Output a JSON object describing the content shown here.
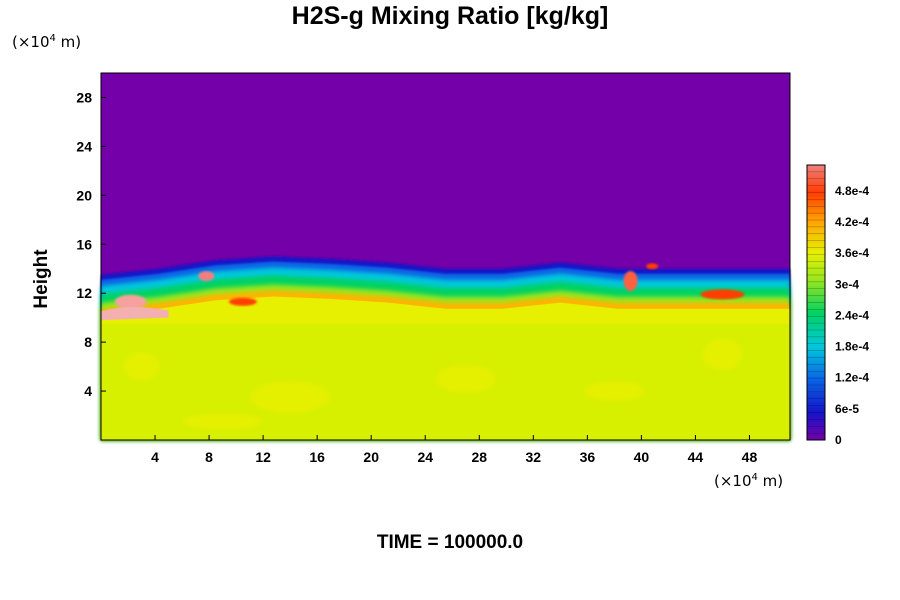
{
  "header": {
    "title": "H2S-g Mixing Ratio [kg/kg]",
    "y_units": "(×10",
    "y_units_exp": "4",
    "y_units_tail": " m)",
    "x_units": "(×10",
    "x_units_exp": "4",
    "x_units_tail": " m)",
    "ylabel": "Height"
  },
  "footer": {
    "time_label": "TIME = 100000.0"
  },
  "chart_data": {
    "type": "heatmap",
    "title": "H2S-g Mixing Ratio [kg/kg]",
    "ylabel": "Height",
    "xlabel": "",
    "xlim": [
      0,
      51
    ],
    "ylim": [
      0,
      30
    ],
    "x_ticks": [
      "4",
      "8",
      "12",
      "16",
      "20",
      "24",
      "28",
      "32",
      "36",
      "40",
      "44",
      "48"
    ],
    "y_ticks": [
      "4",
      "8",
      "12",
      "16",
      "20",
      "24",
      "28"
    ],
    "x_tick_values": [
      4,
      8,
      12,
      16,
      20,
      24,
      28,
      32,
      36,
      40,
      44,
      48
    ],
    "y_tick_values": [
      4,
      8,
      12,
      16,
      20,
      24,
      28
    ],
    "colorbar": {
      "labels": [
        "0",
        "6e-5",
        "1.2e-4",
        "1.8e-4",
        "2.4e-4",
        "3e-4",
        "3.6e-4",
        "4.2e-4",
        "4.8e-4"
      ],
      "values": [
        0,
        6e-05,
        0.00012,
        0.00018,
        0.00024,
        0.0003,
        0.00036,
        0.00042,
        0.00048
      ],
      "max": 0.00053,
      "colors": [
        "#7300a8",
        "#1414c8",
        "#0a64e6",
        "#00c8dc",
        "#00d264",
        "#96e61e",
        "#e6f000",
        "#ffa000",
        "#ff3c00",
        "#f08080"
      ]
    },
    "field_description_values": {
      "upper_region_value": 0,
      "lower_region_value": 0.00037,
      "interface_height": [
        13.5,
        14.0,
        14.7,
        15.0,
        14.8,
        14.5,
        14.0,
        14.0,
        14.5,
        14.0,
        14.0,
        14.0,
        14.0
      ]
    },
    "grid": false
  }
}
